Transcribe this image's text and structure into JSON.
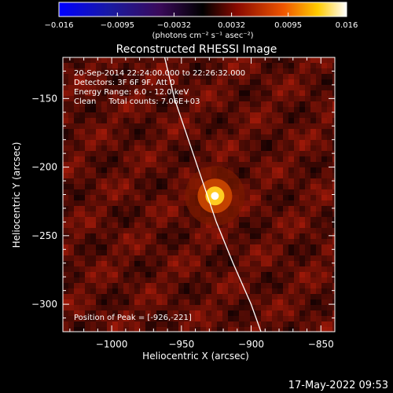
{
  "chart_data": {
    "type": "heatmap",
    "title": "Reconstructed RHESSI Image",
    "xlabel": "Heliocentric X (arcsec)",
    "ylabel": "Heliocentric Y (arcsec)",
    "xlim": [
      -1035,
      -840
    ],
    "ylim": [
      -320,
      -120
    ],
    "xticks": [
      -1000,
      -950,
      -900,
      -850
    ],
    "xtick_labels": [
      "−1000",
      "−950",
      "−900",
      "−850"
    ],
    "yticks": [
      -300,
      -250,
      -200,
      -150
    ],
    "ytick_labels": [
      "−300",
      "−250",
      "−200",
      "−150"
    ],
    "colorbar": {
      "range": [
        -0.016,
        0.016
      ],
      "ticks": [
        -0.016,
        -0.0095,
        -0.0032,
        0.0032,
        0.0095,
        0.016
      ],
      "tick_labels": [
        "−0.016",
        "−0.0095",
        "−0.0032",
        "0.0032",
        "0.0095",
        "0.016"
      ],
      "unit_label": "(photons cm⁻² s⁻¹ asec⁻²)"
    },
    "peak": {
      "x": -926,
      "y": -221
    },
    "limb_curve": [
      [
        -962,
        -120
      ],
      [
        -955,
        -150
      ],
      [
        -945,
        -180
      ],
      [
        -935,
        -210
      ],
      [
        -925,
        -240
      ],
      [
        -913,
        -270
      ],
      [
        -900,
        -300
      ],
      [
        -893,
        -320
      ]
    ],
    "annotations": [
      "20-Sep-2014 22:24:00.000 to 22:26:32.000",
      "Detectors: 3F 6F 9F, Att 0",
      "Energy Range: 6.0 - 12.0 keV",
      "Clean     Total counts: 7.06E+03"
    ],
    "peak_label": "Position of Peak = [-926,-221]",
    "timestamp": "17-May-2022 09:53"
  }
}
